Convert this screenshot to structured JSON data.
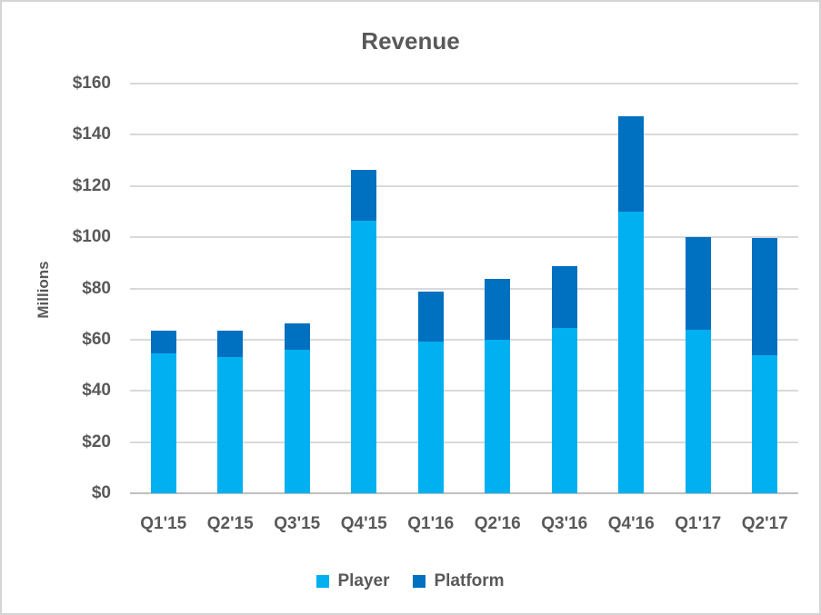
{
  "title": "Revenue",
  "y_axis_title": "Millions",
  "chart_data": {
    "type": "bar",
    "stacked": true,
    "title": "Revenue",
    "xlabel": "",
    "ylabel": "Millions",
    "categories": [
      "Q1'15",
      "Q2'15",
      "Q3'15",
      "Q4'15",
      "Q1'16",
      "Q2'16",
      "Q3'16",
      "Q4'16",
      "Q1'17",
      "Q2'17"
    ],
    "series": [
      {
        "name": "Player",
        "color": "#00b0f0",
        "values": [
          54.5,
          53.1,
          55.9,
          106.6,
          59.3,
          60.1,
          64.6,
          110.1,
          63.7,
          54.0
        ]
      },
      {
        "name": "Platform",
        "color": "#0070c0",
        "values": [
          9.0,
          10.3,
          10.6,
          19.8,
          19.4,
          23.8,
          24.1,
          37.2,
          36.4,
          45.6
        ]
      }
    ],
    "ylim": [
      0,
      160
    ],
    "ytick_step": 20,
    "ytick_labels": [
      "$0",
      "$20",
      "$40",
      "$60",
      "$80",
      "$100",
      "$120",
      "$140",
      "$160"
    ],
    "grid": true,
    "legend_position": "bottom",
    "legend_entries": [
      "Player",
      "Platform"
    ]
  },
  "colors": {
    "player": "#00b0f0",
    "platform": "#0070c0",
    "text": "#595959",
    "gridline": "#d9d9d9",
    "axis_line": "#bfbfbf",
    "border": "#d5d5d5",
    "background": "#ffffff"
  }
}
